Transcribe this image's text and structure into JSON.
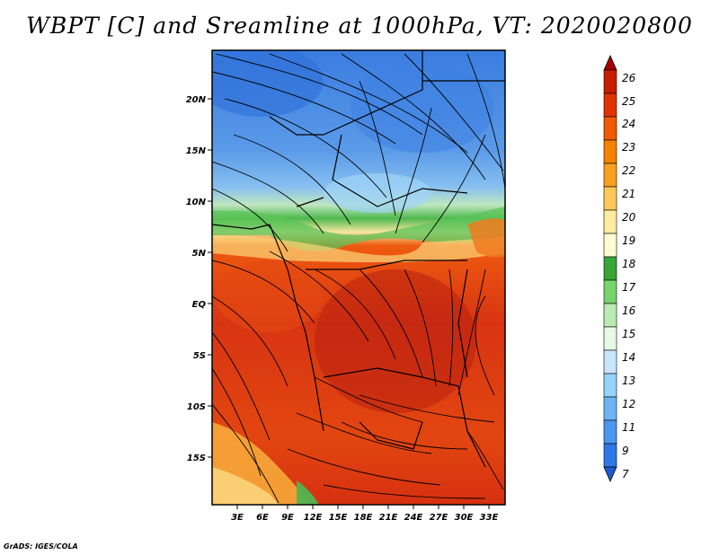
{
  "title": "WBPT [C] and Sreamline at 1000hPa, VT: 2020020800",
  "footer": "GrADS: IGES/COLA",
  "lat_ticks": [
    "20N",
    "15N",
    "10N",
    "5N",
    "EQ",
    "5S",
    "10S",
    "15S"
  ],
  "lon_ticks": [
    "3E",
    "6E",
    "9E",
    "12E",
    "15E",
    "18E",
    "21E",
    "24E",
    "27E",
    "30E",
    "33E"
  ],
  "colorbar": {
    "labels": [
      "26",
      "25",
      "24",
      "23",
      "22",
      "21",
      "20",
      "19",
      "18",
      "17",
      "16",
      "15",
      "14",
      "13",
      "12",
      "11",
      "9",
      "7"
    ],
    "colors": [
      "#a50000",
      "#c81e00",
      "#e03200",
      "#f05a00",
      "#f58200",
      "#faa01e",
      "#fcc85a",
      "#fdeba0",
      "#fffad2",
      "#37a537",
      "#78d26e",
      "#b9ebb2",
      "#e6fae6",
      "#c8e6fa",
      "#96d2fa",
      "#6eb4f5",
      "#4b96f0",
      "#2d78e6",
      "#1e5ad2"
    ]
  }
}
